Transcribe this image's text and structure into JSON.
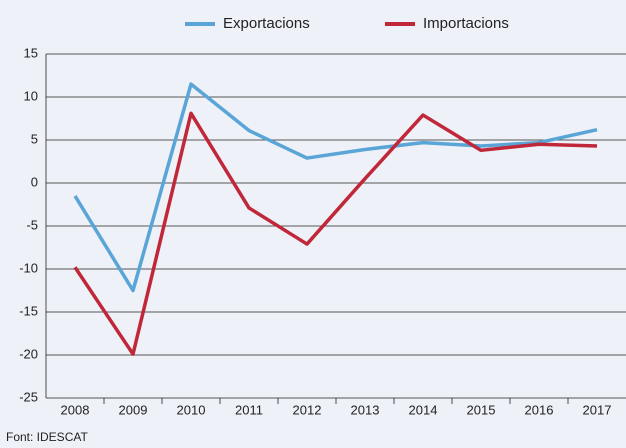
{
  "chart_data": {
    "type": "line",
    "categories": [
      "2008",
      "2009",
      "2010",
      "2011",
      "2012",
      "2013",
      "2014",
      "2015",
      "2016",
      "2017"
    ],
    "series": [
      {
        "name": "Exportacions",
        "color": "#5aa5d8",
        "values": [
          -1.5,
          -12.5,
          11.5,
          6.1,
          2.9,
          3.9,
          4.7,
          4.3,
          4.7,
          6.2
        ]
      },
      {
        "name": "Importacions",
        "color": "#c0283a",
        "values": [
          -9.8,
          -19.9,
          8.1,
          -2.9,
          -7.1,
          0.5,
          7.9,
          3.8,
          4.5,
          4.3
        ]
      }
    ],
    "ylim": [
      -25,
      15
    ],
    "yticks": [
      -25,
      -20,
      -15,
      -10,
      -5,
      0,
      5,
      10,
      15
    ],
    "grid": true,
    "source": "Font: IDESCAT"
  }
}
